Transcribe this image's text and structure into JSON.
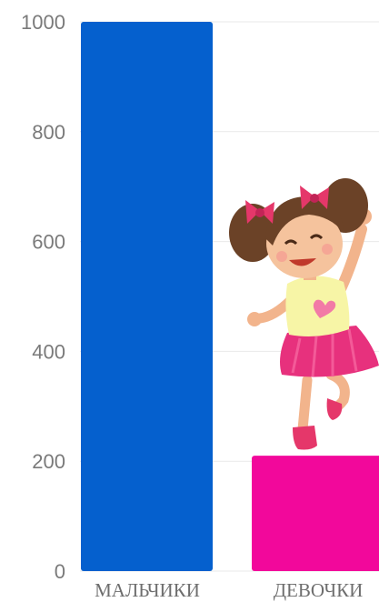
{
  "chart_data": {
    "type": "bar",
    "categories": [
      "МАЛЬЧИКИ",
      "ДЕВОЧКИ"
    ],
    "values": [
      1000,
      210
    ],
    "ylim": [
      0,
      1000
    ],
    "yticks": [
      0,
      200,
      400,
      600,
      800,
      1000
    ],
    "grid": true,
    "colors": [
      "#0560CE",
      "#F2089B"
    ],
    "legend": "none"
  },
  "illustration": {
    "icon": "girl-cartoon-icon"
  }
}
